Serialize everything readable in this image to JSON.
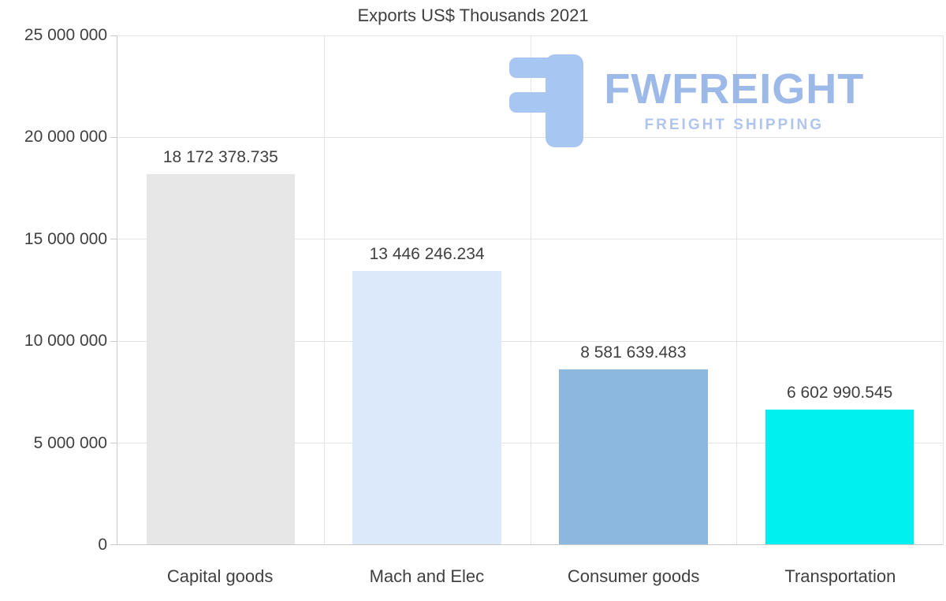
{
  "chart_data": {
    "type": "bar",
    "title": "Exports US$ Thousands 2021",
    "categories": [
      "Capital goods",
      "Mach and Elec",
      "Consumer goods",
      "Transportation"
    ],
    "values": [
      18172378.735,
      13446246.234,
      8581639.483,
      6602990.545
    ],
    "value_labels": [
      "18 172 378.735",
      "13 446 246.234",
      "8 581 639.483",
      "6 602 990.545"
    ],
    "bar_colors": [
      "#e7e7e7",
      "#dbe9fa",
      "#8cb8e0",
      "#00efef"
    ],
    "xlabel": "",
    "ylabel": "",
    "ylim": [
      0,
      25000000
    ],
    "yticks": [
      {
        "value": 0,
        "label": "0"
      },
      {
        "value": 5000000,
        "label": "5 000 000"
      },
      {
        "value": 10000000,
        "label": "10 000 000"
      },
      {
        "value": 15000000,
        "label": "15 000 000"
      },
      {
        "value": 20000000,
        "label": "20 000 000"
      },
      {
        "value": 25000000,
        "label": "25 000 000"
      }
    ],
    "grid": true,
    "legend": false
  },
  "watermark": {
    "brand": "FWFREIGHT",
    "tagline": "FREIGHT SHIPPING",
    "logo_icon": "fwfreight-logo-icon",
    "logo_color": "#a8c6f2",
    "brand_color": "#9db9e8",
    "tagline_color": "#afc5ee"
  },
  "colors": {
    "text": "#404040",
    "gridline": "#e4e4e4",
    "axis": "#c9c9c9",
    "background": "#ffffff"
  }
}
